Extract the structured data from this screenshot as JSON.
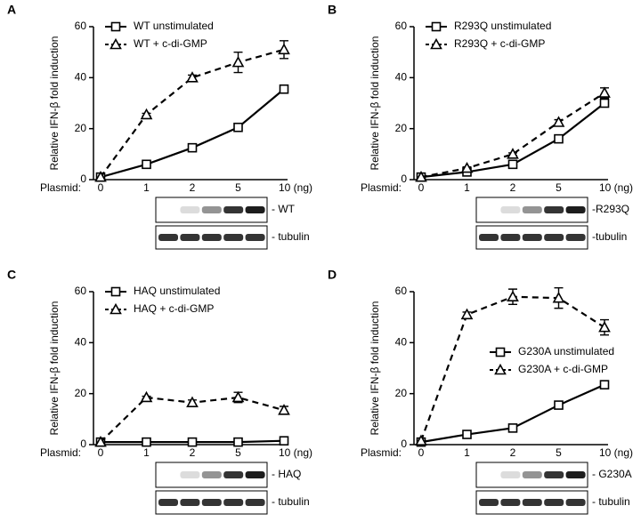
{
  "chart_data": [
    {
      "type": "line",
      "panel_label": "A",
      "y_label": "Relative IFN-β fold induction",
      "x_label": "Plasmid:",
      "categories": [
        "0",
        "1",
        "2",
        "5",
        "10 (ng)"
      ],
      "ylim": [
        0,
        60
      ],
      "yticks": [
        0,
        20,
        40,
        60
      ],
      "legend": "upper-left",
      "blot_labels": [
        "- WT",
        "- tubulin"
      ],
      "series": [
        {
          "name": "WT  unstimulated",
          "color": "#000000",
          "line_style": "solid",
          "marker": "square",
          "values": [
            1,
            6,
            12.5,
            20.5,
            35.5
          ],
          "errors": [
            0,
            0.5,
            0.5,
            1,
            1
          ]
        },
        {
          "name": "WT + c-di-GMP",
          "color": "#000000",
          "line_style": "dashed",
          "marker": "triangle",
          "values": [
            1,
            25.5,
            40,
            46,
            51
          ],
          "errors": [
            0,
            0.5,
            1,
            4,
            3.5
          ]
        }
      ]
    },
    {
      "type": "line",
      "panel_label": "B",
      "y_label": "Relative IFN-β fold induction",
      "x_label": "Plasmid:",
      "categories": [
        "0",
        "1",
        "2",
        "5",
        "10 (ng)"
      ],
      "ylim": [
        0,
        60
      ],
      "yticks": [
        0,
        20,
        40,
        60
      ],
      "legend": "upper-left",
      "blot_labels": [
        "-R293Q",
        "-tubulin"
      ],
      "series": [
        {
          "name": "R293Q unstimulated",
          "color": "#000000",
          "line_style": "solid",
          "marker": "square",
          "values": [
            1,
            3,
            6,
            16,
            30
          ],
          "errors": [
            0,
            0.5,
            0.5,
            1,
            1
          ]
        },
        {
          "name": "R293Q + c-di-GMP",
          "color": "#000000",
          "line_style": "dashed",
          "marker": "triangle",
          "values": [
            1,
            4.5,
            10,
            22.5,
            34
          ],
          "errors": [
            0,
            0.5,
            0.5,
            1,
            2
          ]
        }
      ]
    },
    {
      "type": "line",
      "panel_label": "C",
      "y_label": "Relative IFN-β fold induction",
      "x_label": "Plasmid:",
      "categories": [
        "0",
        "1",
        "2",
        "5",
        "10 (ng)"
      ],
      "ylim": [
        0,
        60
      ],
      "yticks": [
        0,
        20,
        40,
        60
      ],
      "legend": "upper-left",
      "blot_labels": [
        "- HAQ",
        "- tubulin"
      ],
      "series": [
        {
          "name": "HAQ unstimulated",
          "color": "#000000",
          "line_style": "solid",
          "marker": "square",
          "values": [
            1,
            1,
            1,
            1,
            1.5
          ],
          "errors": [
            0,
            0,
            0,
            0,
            0
          ]
        },
        {
          "name": "HAQ + c-di-GMP",
          "color": "#000000",
          "line_style": "dashed",
          "marker": "triangle",
          "values": [
            1,
            18.5,
            16.5,
            18.5,
            13.5
          ],
          "errors": [
            0,
            0.5,
            1,
            2,
            1.5
          ]
        }
      ]
    },
    {
      "type": "line",
      "panel_label": "D",
      "y_label": "Relative IFN-β fold induction",
      "x_label": "Plasmid:",
      "categories": [
        "0",
        "1",
        "2",
        "5",
        "10 (ng)"
      ],
      "ylim": [
        0,
        60
      ],
      "yticks": [
        0,
        20,
        40,
        60
      ],
      "legend": "center-right",
      "blot_labels": [
        "- G230A",
        "- tubulin"
      ],
      "series": [
        {
          "name": "G230A unstimulated",
          "color": "#000000",
          "line_style": "solid",
          "marker": "square",
          "values": [
            1,
            4,
            6.5,
            15.5,
            23.5
          ],
          "errors": [
            0,
            0.5,
            0.5,
            1,
            1
          ]
        },
        {
          "name": "G230A + c-di-GMP",
          "color": "#000000",
          "line_style": "dashed",
          "marker": "triangle",
          "values": [
            1.5,
            51,
            58,
            57.5,
            46
          ],
          "errors": [
            0,
            1,
            3,
            4,
            3
          ]
        }
      ]
    }
  ]
}
